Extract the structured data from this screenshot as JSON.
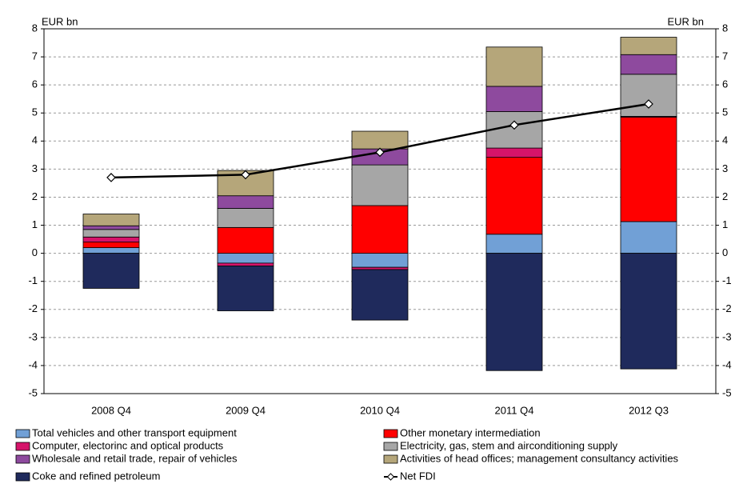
{
  "chart_data": {
    "type": "bar",
    "stacked": true,
    "y_label_left": "EUR bn",
    "y_label_right": "EUR bn",
    "categories": [
      "2008 Q4",
      "2009 Q4",
      "2010 Q4",
      "2011 Q4",
      "2012 Q3"
    ],
    "ylim": [
      -5,
      8
    ],
    "yticks": [
      -5,
      -4,
      -3,
      -2,
      -1,
      0,
      1,
      2,
      3,
      4,
      5,
      6,
      7,
      8
    ],
    "grid": true,
    "series": [
      {
        "name": "Total vehicles and other transport equipment",
        "color": "#71a0d6",
        "values": [
          0.2,
          -0.35,
          -0.5,
          0.68,
          1.13
        ]
      },
      {
        "name": "Other monetary intermediation",
        "color": "#ff0000",
        "values": [
          0.2,
          0.92,
          1.7,
          2.74,
          3.72
        ]
      },
      {
        "name": "Computer, electorinc and optical products",
        "color": "#d6146a",
        "values": [
          0.18,
          -0.1,
          -0.08,
          0.33,
          0.03
        ]
      },
      {
        "name": "Electricity, gas, stem and airconditioning supply",
        "color": "#a6a6a6",
        "values": [
          0.27,
          0.68,
          1.45,
          1.3,
          1.5
        ]
      },
      {
        "name": "Wholesale and retail trade, repair of vehicles",
        "color": "#8e4a9e",
        "values": [
          0.13,
          0.45,
          0.57,
          0.9,
          0.7
        ]
      },
      {
        "name": "Activities of head offices; management consultancy activities",
        "color": "#b5a67a",
        "values": [
          0.42,
          0.9,
          0.63,
          1.4,
          0.62
        ]
      },
      {
        "name": "Coke and refined petroleum",
        "color": "#1f2a5c",
        "values": [
          -1.25,
          -1.6,
          -1.8,
          -4.18,
          -4.12
        ]
      }
    ],
    "line_series": {
      "name": "Net FDI",
      "color": "#000000",
      "values": [
        2.7,
        2.8,
        3.6,
        4.57,
        5.32
      ]
    }
  }
}
